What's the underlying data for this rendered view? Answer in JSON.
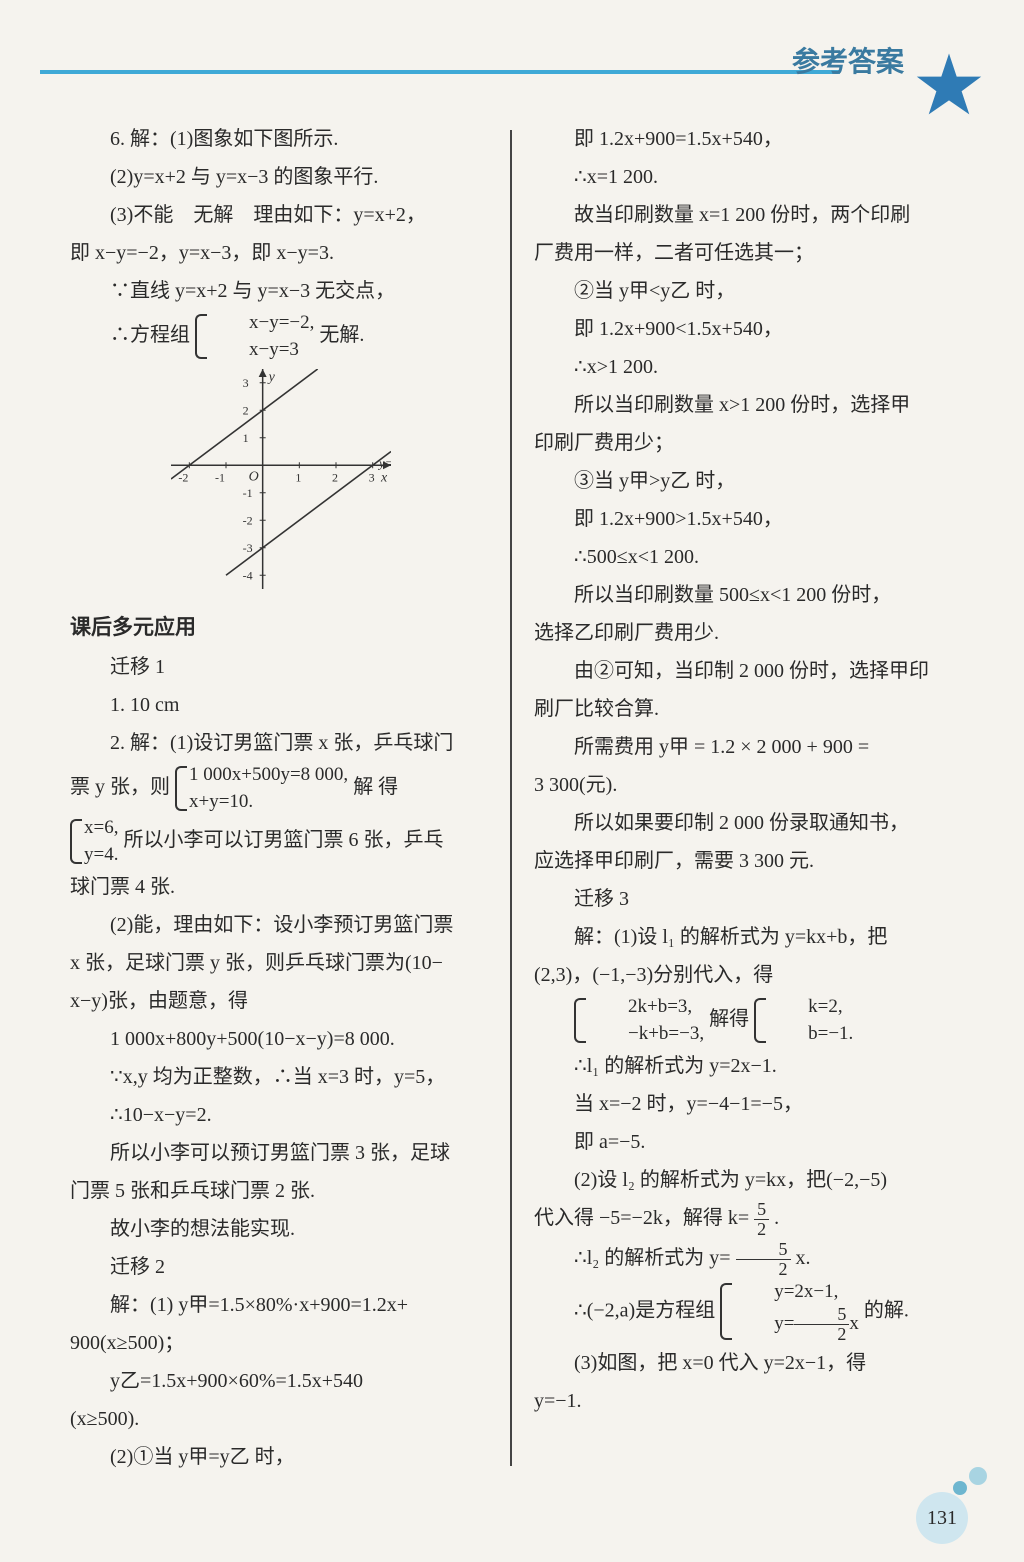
{
  "header": {
    "title": "参考答案",
    "line_color": "#3fa9d6",
    "title_color": "#3a7aa0",
    "star_color": "#2f7bb5"
  },
  "page_number": "131",
  "colors": {
    "background": "#f5f3ee",
    "text": "#2a2a2a",
    "divider": "#444",
    "badge_bg": "#cfe6ef"
  },
  "graph": {
    "type": "line",
    "xlim": [
      -2.5,
      3.5
    ],
    "ylim": [
      -4.5,
      3.5
    ],
    "xticks": [
      -2,
      -1,
      1,
      2,
      3
    ],
    "yticks": [
      -4,
      -3,
      -2,
      -1,
      1,
      2,
      3
    ],
    "axis_color": "#333",
    "line_color": "#333",
    "line_width": 1.6,
    "lines": [
      {
        "label": "y=x+2",
        "points": [
          [
            -2.5,
            -0.5
          ],
          [
            1.5,
            3.5
          ]
        ]
      },
      {
        "label": "y=x-3",
        "points": [
          [
            -1,
            -4
          ],
          [
            3.5,
            0.5
          ]
        ]
      }
    ],
    "label_fontsize": 14
  },
  "left": {
    "p1": "6. 解：(1)图象如下图所示.",
    "p2": "(2)y=x+2 与 y=x−3 的图象平行.",
    "p3": "(3)不能　无解　理由如下：y=x+2，",
    "p4": "即 x−y=−2，y=x−3，即 x−y=3.",
    "p5": "∵直线 y=x+2 与 y=x−3 无交点，",
    "p6_lead": "∴方程组",
    "p6_brace1": "x−y=−2,",
    "p6_brace2": "x−y=3",
    "p6_tail": "无解.",
    "section": "课后多元应用",
    "q1h": "迁移 1",
    "q1_1": "1. 10 cm",
    "q2_1": "2. 解：(1)设订男篮门票 x 张，乒乓球门",
    "q2_2a": "票 y 张，则",
    "q2_brace1_l1": "1 000x+500y=8 000,",
    "q2_brace1_l2": "x+y=10.",
    "q2_2b": "解 得",
    "q2_brace2_l1": "x=6,",
    "q2_brace2_l2": "y=4.",
    "q2_3": "所以小李可以订男篮门票 6 张，乒乓",
    "q2_4": "球门票 4 张.",
    "q2_5": "(2)能，理由如下：设小李预订男篮门票",
    "q2_6": "x 张，足球门票 y 张，则乒乓球门票为(10−",
    "q2_7": "x−y)张，由题意，得",
    "q2_8": "1 000x+800y+500(10−x−y)=8 000.",
    "q2_9": "∵x,y 均为正整数，∴当 x=3 时，y=5，",
    "q2_10": "∴10−x−y=2.",
    "q2_11": "所以小李可以预订男篮门票 3 张，足球",
    "q2_12": "门票 5 张和乒乓球门票 2 张.",
    "q2_13": "故小李的想法能实现.",
    "q3h": "迁移 2",
    "q3_1": "解：(1) y甲=1.5×80%·x+900=1.2x+",
    "q3_2": "900(x≥500)；",
    "q3_3": "y乙=1.5x+900×60%=1.5x+540",
    "q3_4": "(x≥500).",
    "q3_5": "(2)①当 y甲=y乙 时，"
  },
  "right": {
    "r1": "即 1.2x+900=1.5x+540，",
    "r2": "∴x=1 200.",
    "r3": "故当印刷数量 x=1 200 份时，两个印刷",
    "r4": "厂费用一样，二者可任选其一；",
    "r5": "②当 y甲<y乙 时，",
    "r6": "即 1.2x+900<1.5x+540，",
    "r7": "∴x>1 200.",
    "r8": "所以当印刷数量 x>1 200 份时，选择甲",
    "r9": "印刷厂费用少；",
    "r10": "③当 y甲>y乙 时，",
    "r11": "即 1.2x+900>1.5x+540，",
    "r12": "∴500≤x<1 200.",
    "r13": "所以当印刷数量 500≤x<1 200 份时，",
    "r14": "选择乙印刷厂费用少.",
    "r15": "由②可知，当印制 2 000 份时，选择甲印",
    "r16": "刷厂比较合算.",
    "r17": "所需费用 y甲 = 1.2 × 2 000 + 900 =",
    "r18": "3 300(元).",
    "r19": "所以如果要印制 2 000 份录取通知书，",
    "r20": "应选择甲印刷厂，需要 3 300 元.",
    "q4h": "迁移 3",
    "r21": "解：(1)设 l₁ 的解析式为 y=kx+b，把",
    "r22": "(2,3)，(−1,−3)分别代入，得",
    "r23_b1l1": "2k+b=3,",
    "r23_b1l2": "−k+b=−3,",
    "r23_mid": "解得",
    "r23_b2l1": "k=2,",
    "r23_b2l2": "b=−1.",
    "r24": "∴l₁ 的解析式为 y=2x−1.",
    "r25": "当 x=−2 时，y=−4−1=−5，",
    "r26": "即 a=−5.",
    "r27": "(2)设 l₂ 的解析式为 y=kx，把(−2,−5)",
    "r28a": "代入得 −5=−2k，解得 k=",
    "r28_num": "5",
    "r28_den": "2",
    "r28b": ".",
    "r29a": "∴l₂ 的解析式为 y=",
    "r29_num": "5",
    "r29_den": "2",
    "r29b": "x.",
    "r30a": "∴(−2,a)是方程组",
    "r30_b1": "y=2x−1,",
    "r30_b2a": "y=",
    "r30_b2_num": "5",
    "r30_b2_den": "2",
    "r30_b2b": "x",
    "r30b": "的解.",
    "r31": "(3)如图，把 x=0 代入 y=2x−1，得",
    "r32": "y=−1."
  }
}
